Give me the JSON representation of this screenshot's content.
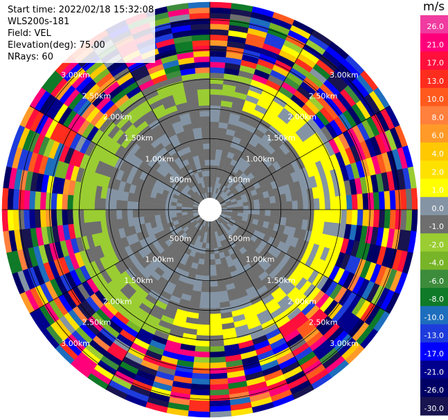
{
  "info": {
    "start_time": "Start time: 2022/02/18 15:32:08",
    "instrument": "WLS200s-181",
    "field": "Field: VEL",
    "elevation": "Elevation(deg): 75.00",
    "nrays": "NRays: 60"
  },
  "colorbar": {
    "unit": "m/s",
    "ticks": [
      "26.0",
      "21.0",
      "17.0",
      "13.0",
      "10.0",
      "8.0",
      "6.0",
      "4.0",
      "2.0",
      "1.0",
      "0.0",
      "-1.0",
      "-2.0",
      "-4.0",
      "-6.0",
      "-8.0",
      "-10.0",
      "-13.0",
      "-17.0",
      "-21.0",
      "-26.0",
      "-30.0"
    ],
    "colors": [
      "#f03ca0",
      "#ff007a",
      "#ff0f3c",
      "#ff2d1e",
      "#ff5a1e",
      "#ff7f3c",
      "#ff9a28",
      "#ffc800",
      "#ffe100",
      "#ffff00",
      "#8494a4",
      "#6e6e6e",
      "#9acd32",
      "#78b428",
      "#3c8c3c",
      "#0f7a28",
      "#1e6ebe",
      "#1e3cdc",
      "#0000ff",
      "#00008c",
      "#000064",
      "#181450"
    ]
  },
  "chart_data": {
    "type": "polar_ppi",
    "title": "",
    "field": "VEL",
    "units": "m/s",
    "n_rays": 60,
    "range_ring_labels": [
      "500m",
      "1.00km",
      "1.50km",
      "2.00km",
      "2.50km",
      "3.00km"
    ],
    "range_rings_m": [
      500,
      1000,
      1500,
      2000,
      2500,
      3000
    ],
    "max_range_m": 3300,
    "vmin": -30,
    "vmax": 30,
    "description_of_field": "near-zero velocities (gray) within ~1.6 km, yellow/green transitional band, noisy mixed velocities beyond ~2 km"
  }
}
